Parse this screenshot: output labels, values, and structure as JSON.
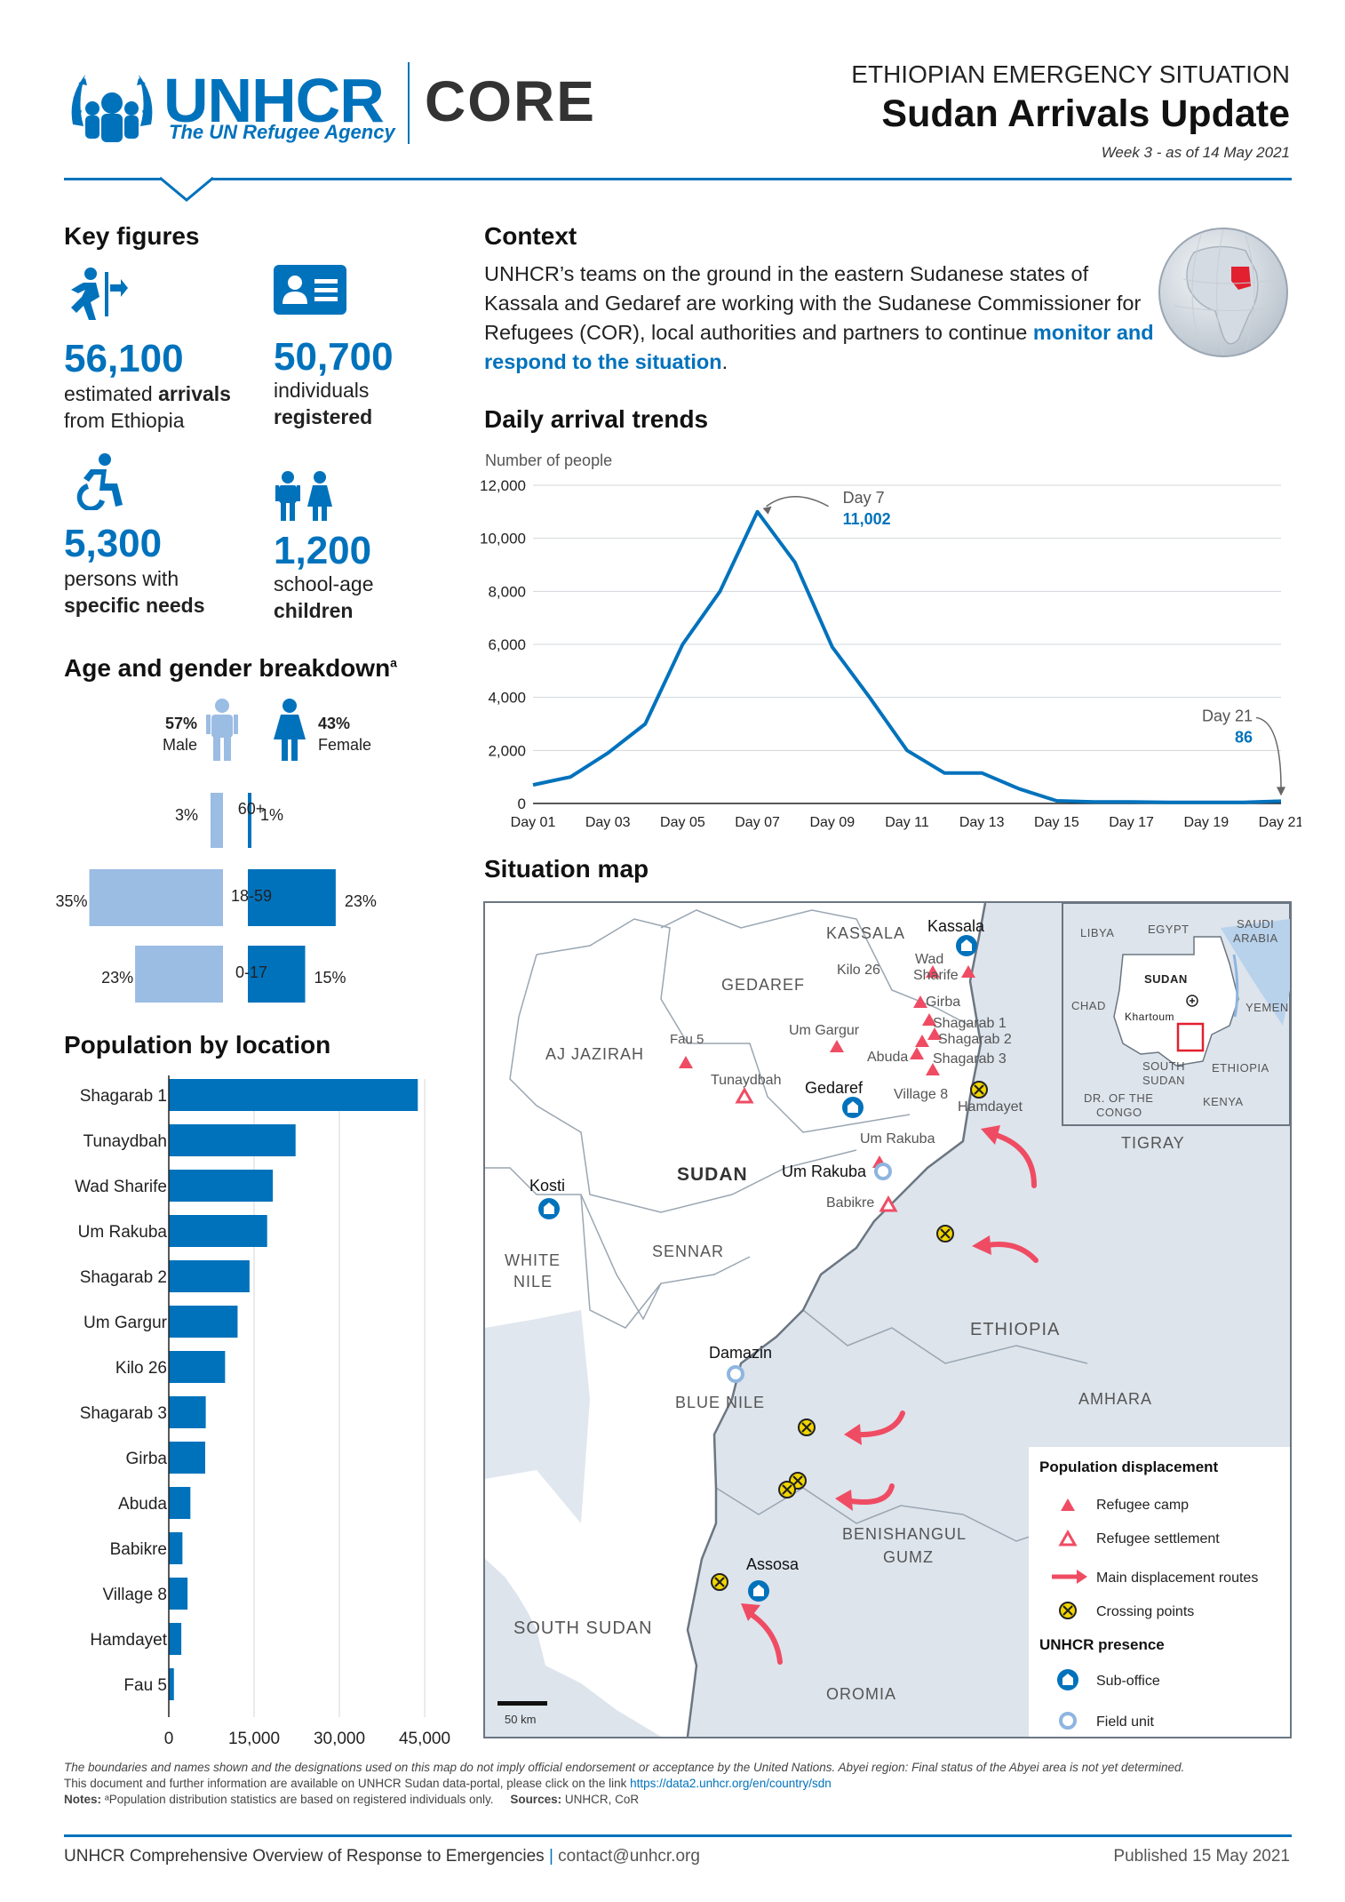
{
  "header": {
    "logo": "UNHCR",
    "logo_sub": "The UN Refugee Agency",
    "core": "CORE",
    "situation": "ETHIOPIAN EMERGENCY SITUATION",
    "title": "Sudan Arrivals Update",
    "week": "Week 3 - as of 14 May 2021"
  },
  "key_figures": {
    "heading": "Key figures",
    "arrivals": {
      "value": "56,100",
      "pre": "estimated ",
      "bold": "arrivals",
      "post": "from Ethiopia",
      "icon": "person-running-arrow-icon"
    },
    "registered": {
      "value": "50,700",
      "line1": "individuals",
      "bold": "registered",
      "icon": "id-card-icon"
    },
    "specific_needs": {
      "value": "5,300",
      "line1": "persons with",
      "bold": "specific needs",
      "icon": "wheelchair-icon"
    },
    "children": {
      "value": "1,200",
      "line1": "school-age",
      "bold": "children",
      "icon": "children-icon"
    }
  },
  "age_gender": {
    "heading": "Age and gender breakdown",
    "sup": "a",
    "male_pct": "57%",
    "male_label": "Male",
    "female_pct": "43%",
    "female_label": "Female",
    "groups": [
      {
        "label": "60+",
        "male": 3,
        "female": 1,
        "male_text": "3%",
        "female_text": "1%"
      },
      {
        "label": "18-59",
        "male": 35,
        "female": 23,
        "male_text": "35%",
        "female_text": "23%"
      },
      {
        "label": "0-17",
        "male": 23,
        "female": 15,
        "male_text": "23%",
        "female_text": "15%"
      }
    ],
    "colors": {
      "male": "#9bbce3",
      "female": "#0072bc"
    }
  },
  "population": {
    "heading": "Population by location",
    "ticks": [
      "0",
      "15,000",
      "30,000",
      "45,000"
    ]
  },
  "context": {
    "heading": "Context",
    "text": "UNHCR’s teams on the ground in the eastern Sudanese states of Kassala and Gedaref are working with the Sudanese Commissioner for Refugees (COR), local authorities and partners to continue ",
    "link": "monitor and respond to the situation",
    "end": "."
  },
  "daily": {
    "heading": "Daily arrival trends",
    "annot_peak_label": "Day 7",
    "annot_peak_value": "11,002",
    "annot_last_label": "Day 21",
    "annot_last_value": "86"
  },
  "chart_data": [
    {
      "type": "line",
      "title": "Daily arrival trends",
      "ylabel": "Number of people",
      "xlabel": "",
      "x": [
        "Day 01",
        "Day 02",
        "Day 03",
        "Day 04",
        "Day 05",
        "Day 06",
        "Day 07",
        "Day 08",
        "Day 09",
        "Day 10",
        "Day 11",
        "Day 12",
        "Day 13",
        "Day 14",
        "Day 15",
        "Day 16",
        "Day 17",
        "Day 18",
        "Day 19",
        "Day 20",
        "Day 21"
      ],
      "x_tick_labels": [
        "Day 01",
        "Day 03",
        "Day 05",
        "Day 07",
        "Day 09",
        "Day 11",
        "Day 13",
        "Day 15",
        "Day 17",
        "Day 19",
        "Day 21"
      ],
      "values": [
        700,
        1000,
        1900,
        3000,
        6000,
        8000,
        11002,
        9100,
        5900,
        4000,
        2000,
        1150,
        1150,
        550,
        100,
        60,
        60,
        40,
        40,
        40,
        86
      ],
      "ylim": [
        0,
        12000
      ],
      "y_ticks": [
        0,
        2000,
        4000,
        6000,
        8000,
        10000,
        12000
      ],
      "y_tick_labels": [
        "0",
        "2,000",
        "4,000",
        "6,000",
        "8,000",
        "10,000",
        "12,000"
      ],
      "grid": true,
      "color": "#0072bc"
    },
    {
      "type": "bar",
      "orientation": "horizontal",
      "title": "Population by location",
      "categories": [
        "Shagarab 1",
        "Tunaydbah",
        "Wad Sharife",
        "Um Rakuba",
        "Shagarab 2",
        "Um Gargur",
        "Kilo 26",
        "Shagarab 3",
        "Girba",
        "Abuda",
        "Babikre",
        "Village 8",
        "Hamdayet",
        "Fau 5"
      ],
      "values": [
        43800,
        22300,
        18300,
        17300,
        14200,
        12100,
        9900,
        6500,
        6400,
        3800,
        2400,
        3300,
        2200,
        900
      ],
      "xlim": [
        0,
        50000
      ],
      "x_ticks": [
        0,
        15000,
        30000,
        45000
      ],
      "color": "#0072bc"
    }
  ],
  "map": {
    "heading": "Situation map",
    "regions": {
      "kassala": "KASSALA",
      "gedaref": "GEDAREF",
      "aj_jazirah": "AJ JAZIRAH",
      "sudan": "SUDAN",
      "sennar": "SENNAR",
      "white_nile": "WHITE",
      "white_nile2": "NILE",
      "blue_nile": "BLUE NILE",
      "tigray": "TIGRAY",
      "ethiopia": "ETHIOPIA",
      "amhara": "AMHARA",
      "benishangul": "BENISHANGUL",
      "gumz": "GUMZ",
      "south_sudan": "SOUTH SUDAN",
      "oromia": "OROMIA"
    },
    "places": {
      "kassala": "Kassala",
      "kilo26": "Kilo 26",
      "wad": "Wad",
      "sharife": "Sharife",
      "girba": "Girba",
      "shagarab1": "Shagarab 1",
      "shagarab2": "Shagarab 2",
      "shagarab3": "Shagarab 3",
      "abuda": "Abuda",
      "village8": "Village 8",
      "hamdayet": "Hamdayet",
      "um_gargur": "Um Gargur",
      "fau5": "Fau 5",
      "gedaref": "Gedaref",
      "tunaydbah": "Tunaydbah",
      "um_rakuba_camp": "Um Rakuba",
      "um_rakuba_unit": "Um Rakuba",
      "babikre": "Babikre",
      "kosti": "Kosti",
      "damazin": "Damazin",
      "assosa": "Assosa"
    },
    "inset": {
      "libya": "LIBYA",
      "egypt": "EGYPT",
      "saudi": "SAUDI",
      "arabia": "ARABIA",
      "sudan": "SUDAN",
      "chad": "CHAD",
      "khartoum": "Khartoum",
      "yemen": "YEMEN",
      "south": "SOUTH",
      "sudan2": "SUDAN",
      "ethiopia": "ETHIOPIA",
      "drc1": "DR. OF THE",
      "drc2": "CONGO",
      "kenya": "KENYA"
    },
    "scale": "50 km",
    "legend": {
      "title1": "Population displacement",
      "camp": "Refugee camp",
      "settlement": "Refugee settlement",
      "routes": "Main displacement routes",
      "crossing": "Crossing points",
      "title2": "UNHCR presence",
      "suboffice": "Sub-office",
      "field": "Field unit"
    },
    "colors": {
      "land": "#ffffff",
      "neighbor": "#dde4ec",
      "accent": "#ef4c64",
      "border": "#8b96a3"
    }
  },
  "footer": {
    "disclaimer1": "The boundaries and names shown and the designations used on this map do not imply official endorsement or acceptance by the United Nations. Abyei region: Final status of the Abyei area is not yet determined.",
    "disclaimer2": "This document and further information are available on UNHCR Sudan data-portal, please click on the link ",
    "link": "https://data2.unhcr.org/en/country/sdn",
    "notes_label": "Notes:",
    "notes": " ᵃPopulation distribution statistics are based on registered individuals only.",
    "sources_label": "Sources:",
    "sources": " UNHCR, CoR",
    "left": "UNHCR Comprehensive Overview of Response to Emergencies",
    "contact": "contact@unhcr.org",
    "published": "Published 15 May 2021"
  }
}
